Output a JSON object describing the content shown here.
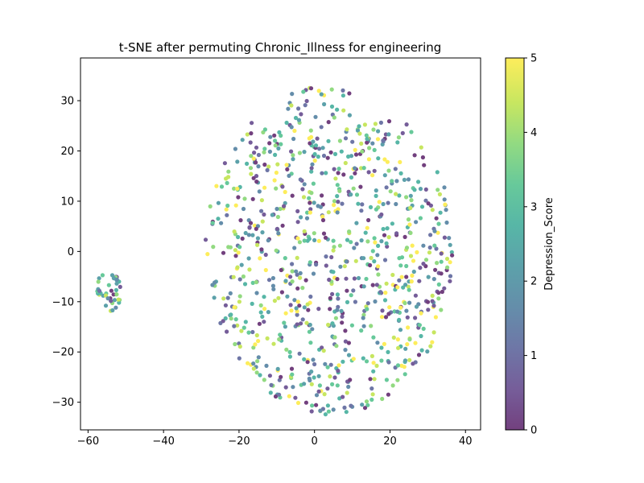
{
  "chart_data": {
    "type": "scatter",
    "title": "t-SNE after permuting Chronic_Illness for engineering",
    "xlabel": "",
    "ylabel": "",
    "xlim": [
      -62,
      44
    ],
    "ylim": [
      -35.5,
      38.5
    ],
    "xticks": [
      -60,
      -40,
      -20,
      0,
      20,
      40
    ],
    "yticks": [
      -30,
      -20,
      -10,
      0,
      10,
      20,
      30
    ],
    "grid": false,
    "colorbar": {
      "label": "Depression_Score",
      "min": 0,
      "max": 5,
      "ticks": [
        0,
        1,
        2,
        3,
        4,
        5
      ],
      "colormap": "viridis"
    },
    "clusters": [
      {
        "name": "",
        "center": [
          -54.5,
          -8
        ],
        "radius": [
          3.5,
          4
        ],
        "count": 40
      },
      {
        "name": "",
        "center": [
          4,
          0
        ],
        "radius": [
          33,
          33
        ],
        "count": 900
      }
    ],
    "colors": {
      "viridis": [
        "#440154",
        "#482878",
        "#3e4989",
        "#31688e",
        "#26828e",
        "#1f9e89",
        "#35b779",
        "#6ece58",
        "#b5de2b",
        "#fde725"
      ]
    }
  }
}
